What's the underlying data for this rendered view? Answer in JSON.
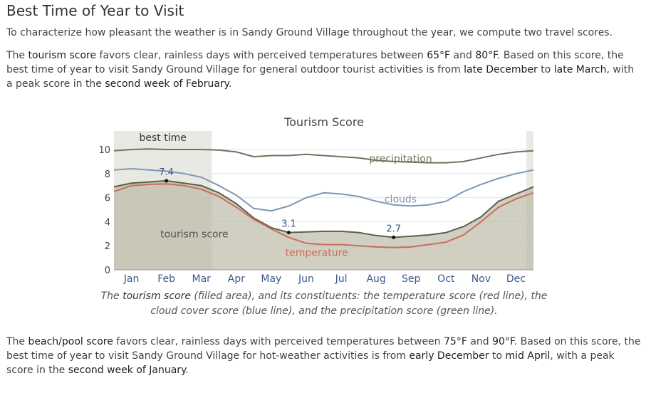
{
  "heading": "Best Time of Year to Visit",
  "intro": "To characterize how pleasant the weather is in Sandy Ground Village throughout the year, we compute two travel scores.",
  "tourism_para": {
    "p1": "The ",
    "hl1": "tourism score",
    "p2": " favors clear, rainless days with perceived temperatures between ",
    "hl2": "65°F",
    "p3": " and ",
    "hl3": "80°F",
    "p4": ". Based on this score, the best time of year to visit Sandy Ground Village for general outdoor tourist activities is from ",
    "hl4": "late December",
    "p5": " to ",
    "hl5": "late March",
    "p6": ", with a peak score in the ",
    "hl6": "second week of February",
    "p7": "."
  },
  "caption": {
    "p1": "The ",
    "hl1": "tourism score",
    "p2": " (filled area), and its constituents: the temperature score (red line), the cloud cover score (blue line), and the precipitation score (green line)."
  },
  "beach_para": {
    "p1": "The ",
    "hl1": "beach/pool score",
    "p2": " favors clear, rainless days with perceived temperatures between ",
    "hl2": "75°F",
    "p3": " and ",
    "hl3": "90°F",
    "p4": ". Based on this score, the best time of year to visit Sandy Ground Village for hot-weather activities is from ",
    "hl4": "early December",
    "p5": " to ",
    "hl5": "mid April",
    "p6": ", with a peak score in the ",
    "hl6": "second week of January",
    "p7": "."
  },
  "chart_data": {
    "type": "area",
    "title": "Tourism Score",
    "ylim": [
      0,
      10
    ],
    "y_ticks": [
      "0",
      "2",
      "4",
      "6",
      "8",
      "10"
    ],
    "months": [
      "Jan",
      "Feb",
      "Mar",
      "Apr",
      "May",
      "Jun",
      "Jul",
      "Aug",
      "Sep",
      "Oct",
      "Nov",
      "Dec"
    ],
    "best_time_label": "best time",
    "best_time_ranges": [
      [
        0,
        2.8
      ],
      [
        11.8,
        12
      ]
    ],
    "series": [
      {
        "name": "tourism score",
        "kind": "area",
        "color": "#b5b29c",
        "label_pos": [
          2.3,
          3.0
        ],
        "x": [
          0,
          0.5,
          1,
          1.5,
          2,
          2.5,
          3,
          3.5,
          4,
          4.5,
          5,
          5.5,
          6,
          6.5,
          7,
          7.5,
          8,
          8.5,
          9,
          9.5,
          10,
          10.5,
          11,
          11.5,
          12
        ],
        "values": [
          6.9,
          7.2,
          7.3,
          7.4,
          7.2,
          7.0,
          6.4,
          5.5,
          4.3,
          3.5,
          3.1,
          3.15,
          3.2,
          3.2,
          3.1,
          2.85,
          2.7,
          2.8,
          2.9,
          3.1,
          3.6,
          4.4,
          5.7,
          6.3,
          6.9
        ]
      },
      {
        "name": "temperature",
        "kind": "line",
        "color": "#c76e5a",
        "label_pos": [
          5.8,
          1.45
        ],
        "x": [
          0,
          0.5,
          1,
          1.5,
          2,
          2.5,
          3,
          3.5,
          4,
          4.5,
          5,
          5.5,
          6,
          6.5,
          7,
          7.5,
          8,
          8.5,
          9,
          9.5,
          10,
          10.5,
          11,
          11.5,
          12
        ],
        "values": [
          6.5,
          7.0,
          7.1,
          7.15,
          7.0,
          6.7,
          6.1,
          5.2,
          4.2,
          3.4,
          2.7,
          2.2,
          2.1,
          2.1,
          2.0,
          1.9,
          1.85,
          1.9,
          2.1,
          2.3,
          2.9,
          4.0,
          5.2,
          5.9,
          6.4
        ]
      },
      {
        "name": "clouds",
        "kind": "line",
        "color": "#7f97b5",
        "label_pos": [
          8.2,
          5.9
        ],
        "x": [
          0,
          0.5,
          1,
          1.5,
          2,
          2.5,
          3,
          3.5,
          4,
          4.5,
          5,
          5.5,
          6,
          6.5,
          7,
          7.5,
          8,
          8.5,
          9,
          9.5,
          10,
          10.5,
          11,
          11.5,
          12
        ],
        "values": [
          8.3,
          8.4,
          8.3,
          8.2,
          8.0,
          7.7,
          7.0,
          6.2,
          5.1,
          4.9,
          5.3,
          6.0,
          6.4,
          6.3,
          6.1,
          5.7,
          5.4,
          5.3,
          5.4,
          5.7,
          6.5,
          7.1,
          7.6,
          8.0,
          8.3
        ]
      },
      {
        "name": "precipitation",
        "kind": "line",
        "color": "#72725d",
        "label_pos": [
          8.2,
          9.25
        ],
        "x": [
          0,
          0.5,
          1,
          1.5,
          2,
          2.5,
          3,
          3.5,
          4,
          4.5,
          5,
          5.5,
          6,
          6.5,
          7,
          7.5,
          8,
          8.5,
          9,
          9.5,
          10,
          10.5,
          11,
          11.5,
          12
        ],
        "values": [
          9.9,
          10.0,
          10.05,
          10.0,
          10.0,
          10.0,
          9.95,
          9.8,
          9.4,
          9.5,
          9.5,
          9.6,
          9.5,
          9.4,
          9.3,
          9.1,
          9.0,
          8.95,
          8.9,
          8.9,
          9.0,
          9.3,
          9.6,
          9.8,
          9.9
        ]
      }
    ],
    "point_labels": [
      {
        "x": 1.5,
        "y": 7.4,
        "text": "7.4"
      },
      {
        "x": 5.0,
        "y": 3.1,
        "text": "3.1"
      },
      {
        "x": 8.0,
        "y": 2.7,
        "text": "2.7"
      }
    ]
  }
}
